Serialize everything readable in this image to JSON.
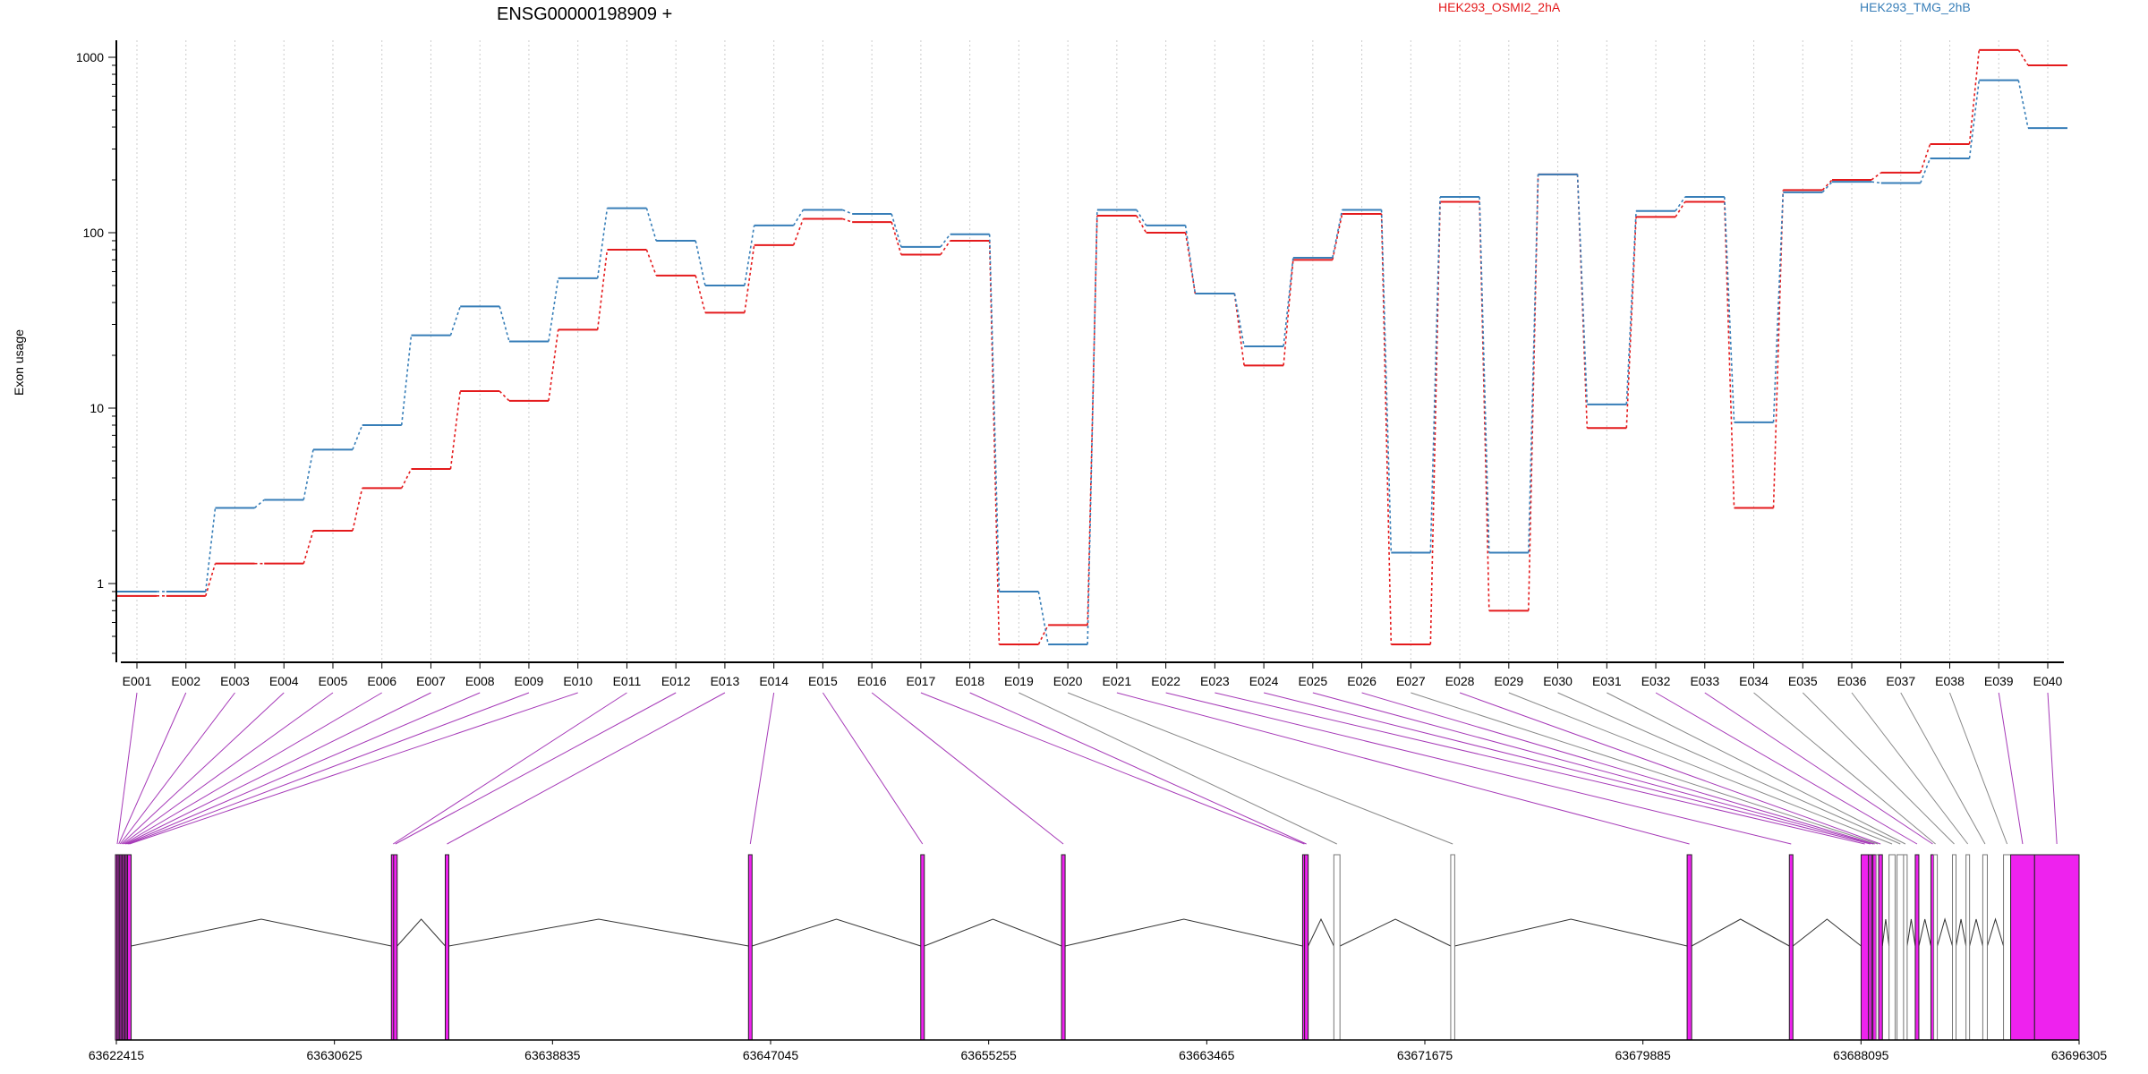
{
  "chart_data": {
    "type": "line",
    "title": "ENSG00000198909 +",
    "ylabel": "Exon usage",
    "xlabel": "",
    "y_scale": "log",
    "ylim": [
      0.4,
      1250
    ],
    "y_ticks": [
      1,
      10,
      100,
      1000
    ],
    "y_tick_labels": [
      "1",
      "10",
      "100",
      "1000"
    ],
    "grid": "vertical dotted lines at each exon",
    "legend_placement": "top-right",
    "categories": [
      "E001",
      "E002",
      "E003",
      "E004",
      "E005",
      "E006",
      "E007",
      "E008",
      "E009",
      "E010",
      "E011",
      "E012",
      "E013",
      "E014",
      "E015",
      "E016",
      "E017",
      "E018",
      "E019",
      "E020",
      "E021",
      "E022",
      "E023",
      "E024",
      "E025",
      "E026",
      "E027",
      "E028",
      "E029",
      "E030",
      "E031",
      "E032",
      "E033",
      "E034",
      "E035",
      "E036",
      "E037",
      "E038",
      "E039",
      "E040"
    ],
    "series": [
      {
        "name": "HEK293_OSMI2_2hA",
        "color": "#e41a1c",
        "values": [
          0.85,
          0.85,
          1.3,
          1.3,
          2.0,
          3.5,
          4.5,
          12.5,
          11.0,
          28,
          80,
          57,
          35,
          85,
          120,
          115,
          75,
          90,
          0.45,
          0.58,
          125,
          100,
          45,
          17.5,
          70,
          128,
          0.45,
          150,
          0.7,
          215,
          7.7,
          123,
          150,
          2.7,
          175,
          200,
          220,
          320,
          1100,
          900
        ]
      },
      {
        "name": "HEK293_TMG_2hB",
        "color": "#377eb8",
        "values": [
          0.9,
          0.9,
          2.7,
          3.0,
          5.8,
          8.0,
          26,
          38,
          24,
          55,
          138,
          90,
          50,
          110,
          135,
          128,
          83,
          98,
          0.9,
          0.45,
          135,
          110,
          45,
          22.5,
          72,
          135,
          1.5,
          160,
          1.5,
          215,
          10.5,
          133,
          160,
          8.3,
          170,
          195,
          192,
          265,
          740,
          395
        ]
      }
    ],
    "gene_model": {
      "coordinate_ticks": [
        "63622415",
        "63630625",
        "63638835",
        "63647045",
        "63655255",
        "63663465",
        "63671675",
        "63679885",
        "63688095",
        "63696305"
      ],
      "coordinate_range": [
        63622415,
        63696305
      ],
      "exons": [
        {
          "id": "E001",
          "start": 63622415,
          "end": 63622480,
          "type": "coding"
        },
        {
          "id": "E002",
          "start": 63622480,
          "end": 63622530,
          "type": "coding"
        },
        {
          "id": "E003",
          "start": 63622530,
          "end": 63622580,
          "type": "coding"
        },
        {
          "id": "E004",
          "start": 63622580,
          "end": 63622630,
          "type": "coding"
        },
        {
          "id": "E005",
          "start": 63622630,
          "end": 63622680,
          "type": "coding"
        },
        {
          "id": "E006",
          "start": 63622680,
          "end": 63622730,
          "type": "coding"
        },
        {
          "id": "E007",
          "start": 63622730,
          "end": 63622780,
          "type": "coding"
        },
        {
          "id": "E008",
          "start": 63622780,
          "end": 63622830,
          "type": "coding"
        },
        {
          "id": "E009",
          "start": 63622830,
          "end": 63622880,
          "type": "coding"
        },
        {
          "id": "E010",
          "start": 63622880,
          "end": 63622930,
          "type": "coding"
        },
        {
          "id": "E011",
          "start": 63632780,
          "end": 63632890,
          "type": "coding"
        },
        {
          "id": "E012",
          "start": 63632890,
          "end": 63632950,
          "type": "coding"
        },
        {
          "id": "E013",
          "start": 63634810,
          "end": 63634920,
          "type": "coding"
        },
        {
          "id": "E014",
          "start": 63646230,
          "end": 63646330,
          "type": "coding"
        },
        {
          "id": "E015",
          "start": 63652700,
          "end": 63652830,
          "type": "coding"
        },
        {
          "id": "E016",
          "start": 63658000,
          "end": 63658130,
          "type": "coding"
        },
        {
          "id": "E017",
          "start": 63667100,
          "end": 63667180,
          "type": "coding"
        },
        {
          "id": "E018",
          "start": 63667180,
          "end": 63667250,
          "type": "coding"
        },
        {
          "id": "E019",
          "start": 63668250,
          "end": 63668480,
          "type": "noncoding"
        },
        {
          "id": "E020",
          "start": 63672650,
          "end": 63672800,
          "type": "noncoding"
        },
        {
          "id": "E021",
          "start": 63681550,
          "end": 63681720,
          "type": "coding"
        },
        {
          "id": "E022",
          "start": 63685400,
          "end": 63685530,
          "type": "coding"
        },
        {
          "id": "E023",
          "start": 63688100,
          "end": 63688380,
          "type": "coding"
        },
        {
          "id": "E024",
          "start": 63688380,
          "end": 63688520,
          "type": "coding"
        },
        {
          "id": "E025",
          "start": 63688520,
          "end": 63688600,
          "type": "coding"
        },
        {
          "id": "E026",
          "start": 63688600,
          "end": 63688620,
          "type": "coding"
        },
        {
          "id": "E027",
          "start": 63688700,
          "end": 63688760,
          "type": "noncoding"
        },
        {
          "id": "E028",
          "start": 63688760,
          "end": 63688900,
          "type": "coding"
        },
        {
          "id": "E029",
          "start": 63689150,
          "end": 63689380,
          "type": "noncoding"
        },
        {
          "id": "E030",
          "start": 63689450,
          "end": 63689700,
          "type": "noncoding"
        },
        {
          "id": "E031",
          "start": 63689700,
          "end": 63689830,
          "type": "noncoding"
        },
        {
          "id": "E032",
          "start": 63690150,
          "end": 63690260,
          "type": "coding"
        },
        {
          "id": "E033",
          "start": 63690740,
          "end": 63690850,
          "type": "coding"
        },
        {
          "id": "E034",
          "start": 63690850,
          "end": 63690950,
          "type": "noncoding"
        },
        {
          "id": "E035",
          "start": 63691550,
          "end": 63691660,
          "type": "noncoding"
        },
        {
          "id": "E036",
          "start": 63692060,
          "end": 63692170,
          "type": "noncoding"
        },
        {
          "id": "E037",
          "start": 63692680,
          "end": 63692850,
          "type": "noncoding"
        },
        {
          "id": "E038",
          "start": 63693460,
          "end": 63693730,
          "type": "noncoding"
        },
        {
          "id": "E039",
          "start": 63693730,
          "end": 63694630,
          "type": "coding"
        },
        {
          "id": "E040",
          "start": 63694630,
          "end": 63696305,
          "type": "coding"
        }
      ]
    }
  },
  "colors": {
    "coding_exon": "#ee22ee",
    "noncoding_exon": "#ffffff",
    "connector_coding": "#a63ab8",
    "connector_noncoding": "#888888",
    "grid": "#cccccc"
  }
}
